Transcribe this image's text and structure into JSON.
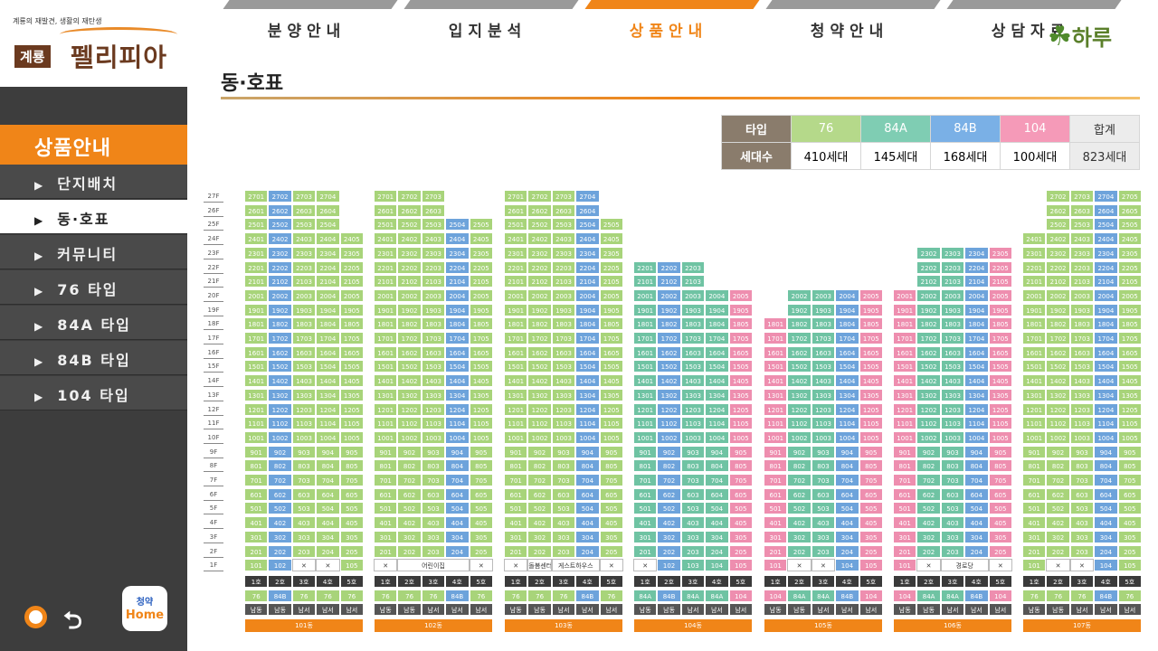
{
  "logo": {
    "tagline": "계룡의 재발견, 생활의 재탄생",
    "badge": "계룡",
    "name": "펠리피아"
  },
  "brand": {
    "text": "하루"
  },
  "tabs": [
    {
      "label": "분양안내"
    },
    {
      "label": "입지분석"
    },
    {
      "label": "상품안내"
    },
    {
      "label": "청약안내"
    },
    {
      "label": "상담자료"
    }
  ],
  "sidebar": {
    "title": "상품안내",
    "items": [
      {
        "label": "단지배치"
      },
      {
        "label": "동·호표"
      },
      {
        "label": "커뮤니티"
      },
      {
        "label": "76 타입"
      },
      {
        "label": "84A 타입"
      },
      {
        "label": "84B 타입"
      },
      {
        "label": "104 타입"
      }
    ]
  },
  "home": {
    "top": "청약",
    "bottom": "Home"
  },
  "page": {
    "title": "동·호표"
  },
  "summary": {
    "type_label": "타입",
    "count_label": "세대수",
    "types": [
      "76",
      "84A",
      "84B",
      "104",
      "합계"
    ],
    "counts": [
      "410세대",
      "145세대",
      "168세대",
      "100세대",
      "823세대"
    ]
  },
  "buildings": [
    {
      "dong": "101동",
      "ho": [
        "1호",
        "2호",
        "3호",
        "4호",
        "5호"
      ],
      "types": [
        "76",
        "84B",
        "76",
        "76",
        "76"
      ],
      "dirs": [
        "남동",
        "남동",
        "남서",
        "남서",
        "남서"
      ],
      "top": [
        27,
        27,
        27,
        27,
        24
      ],
      "colors": [
        "g",
        "b",
        "g",
        "g",
        "g"
      ],
      "ground": [
        "101",
        "102",
        "X",
        "X",
        "105"
      ]
    },
    {
      "dong": "102동",
      "ho": [
        "1호",
        "2호",
        "3호",
        "4호",
        "5호"
      ],
      "types": [
        "76",
        "76",
        "76",
        "84B",
        "76"
      ],
      "dirs": [
        "남동",
        "남동",
        "남서",
        "남서",
        "남서"
      ],
      "top": [
        27,
        27,
        27,
        25,
        25
      ],
      "colors": [
        "g",
        "g",
        "g",
        "b",
        "g"
      ],
      "ground": [
        "X",
        "어린이집",
        "어린이집",
        "어린이집",
        "X"
      ]
    },
    {
      "dong": "103동",
      "ho": [
        "1호",
        "2호",
        "3호",
        "4호",
        "5호"
      ],
      "types": [
        "76",
        "76",
        "76",
        "84B",
        "76"
      ],
      "dirs": [
        "남동",
        "남동",
        "남서",
        "남서",
        "남서"
      ],
      "top": [
        27,
        27,
        27,
        27,
        25
      ],
      "colors": [
        "g",
        "g",
        "g",
        "b",
        "g"
      ],
      "ground": [
        "X",
        "돌봄센터",
        "게스트하우스",
        "게스트하우스",
        "X"
      ]
    },
    {
      "dong": "104동",
      "ho": [
        "1호",
        "2호",
        "3호",
        "4호",
        "5호"
      ],
      "types": [
        "84A",
        "84B",
        "84A",
        "84A",
        "104"
      ],
      "dirs": [
        "남동",
        "남동",
        "남서",
        "남서",
        "남서"
      ],
      "top": [
        22,
        22,
        22,
        20,
        20
      ],
      "colors": [
        "t",
        "b",
        "t",
        "t",
        "p"
      ],
      "ground": [
        "X",
        "102",
        "103",
        "104",
        "105"
      ]
    },
    {
      "dong": "105동",
      "ho": [
        "1호",
        "2호",
        "3호",
        "4호",
        "5호"
      ],
      "types": [
        "104",
        "84A",
        "84A",
        "84B",
        "104"
      ],
      "dirs": [
        "남동",
        "남동",
        "남서",
        "남서",
        "남서"
      ],
      "top": [
        18,
        20,
        20,
        20,
        20
      ],
      "colors": [
        "p",
        "t",
        "t",
        "b",
        "p"
      ],
      "ground": [
        "101",
        "X",
        "X",
        "104",
        "105"
      ]
    },
    {
      "dong": "106동",
      "ho": [
        "1호",
        "2호",
        "3호",
        "4호",
        "5호"
      ],
      "types": [
        "104",
        "84A",
        "84A",
        "84B",
        "104"
      ],
      "dirs": [
        "남동",
        "남동",
        "남서",
        "남서",
        "남서"
      ],
      "top": [
        20,
        23,
        23,
        23,
        23
      ],
      "colors": [
        "p",
        "t",
        "t",
        "b",
        "p"
      ],
      "ground": [
        "101",
        "X",
        "경로당",
        "경로당",
        "X"
      ]
    },
    {
      "dong": "107동",
      "ho": [
        "1호",
        "2호",
        "3호",
        "4호",
        "5호"
      ],
      "types": [
        "76",
        "76",
        "76",
        "84B",
        "76"
      ],
      "dirs": [
        "남동",
        "남동",
        "남서",
        "남서",
        "남서"
      ],
      "top": [
        24,
        27,
        27,
        27,
        27
      ],
      "colors": [
        "g",
        "g",
        "g",
        "b",
        "g"
      ],
      "ground": [
        "101",
        "X",
        "X",
        "104",
        "105"
      ]
    }
  ],
  "floors": [
    "27F",
    "26F",
    "25F",
    "24F",
    "23F",
    "22F",
    "21F",
    "20F",
    "19F",
    "18F",
    "17F",
    "16F",
    "15F",
    "14F",
    "13F",
    "12F",
    "11F",
    "10F",
    "9F",
    "8F",
    "7F",
    "6F",
    "5F",
    "4F",
    "3F",
    "2F",
    "1F"
  ]
}
